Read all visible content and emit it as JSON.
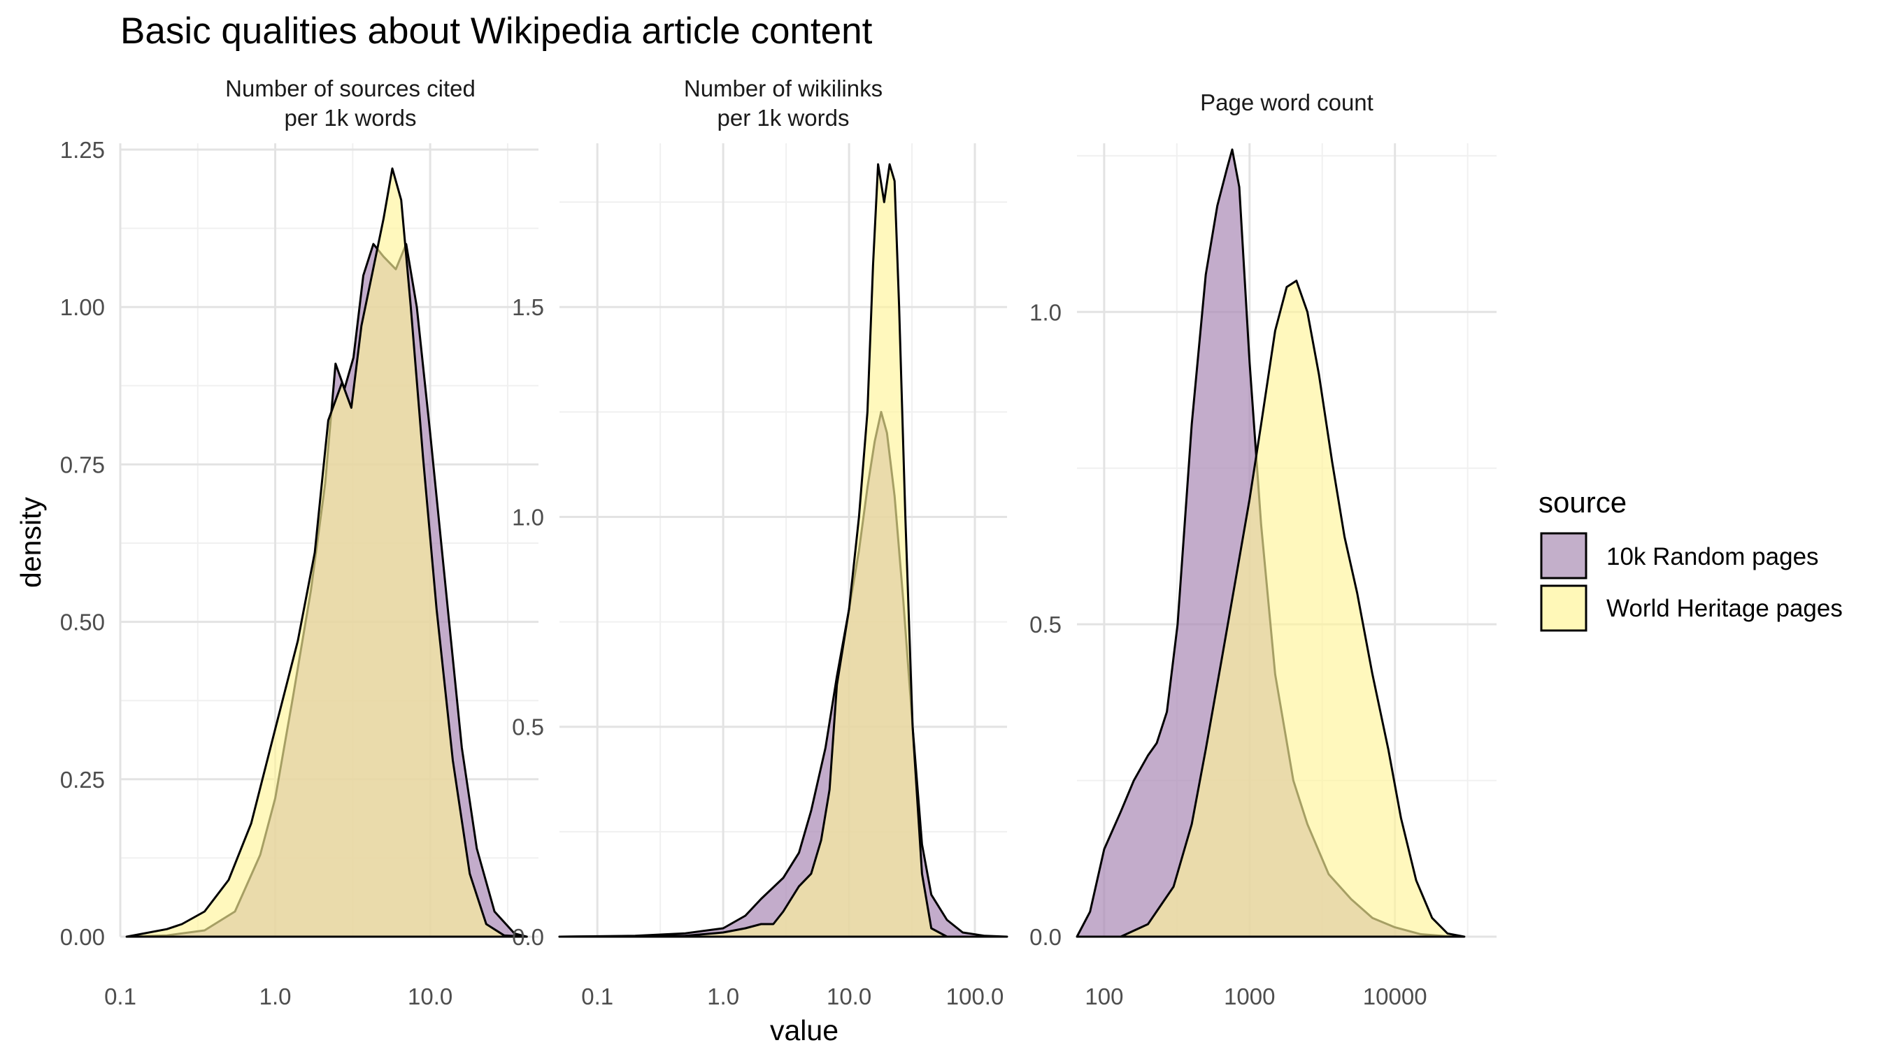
{
  "chart_data": {
    "type": "area",
    "title": "Basic qualities about Wikipedia article content",
    "xlabel": "value",
    "ylabel": "density",
    "xscale": "log10",
    "grid": true,
    "legend": {
      "title": "source",
      "position": "right",
      "entries": [
        {
          "label": "10k Random pages",
          "color": "#c3afca"
        },
        {
          "label": "World Heritage pages",
          "color": "#fff8b8"
        }
      ]
    },
    "colors": {
      "random": "#a989b5",
      "heritage": "#fff59a",
      "overlap": "#d9c6a0",
      "outline": "#000000"
    },
    "panels": [
      {
        "strip": [
          "Number of sources cited",
          "per 1k words"
        ],
        "xlim": [
          0.1,
          50
        ],
        "ylim": [
          0,
          1.26
        ],
        "xticks": [
          0.1,
          1.0,
          10.0
        ],
        "xtick_labels": [
          "0.1",
          "1.0",
          "10.0"
        ],
        "yticks": [
          0,
          0.25,
          0.5,
          0.75,
          1.0,
          1.25
        ],
        "ytick_labels": [
          "0.00",
          "0.25",
          "0.50",
          "0.75",
          "1.00",
          "1.25"
        ],
        "series": [
          {
            "name": "10k Random pages",
            "x": [
              0.11,
              0.2,
              0.35,
              0.55,
              0.8,
              1.0,
              1.3,
              1.7,
              2.1,
              2.45,
              2.8,
              3.2,
              3.7,
              4.3,
              5.0,
              6.0,
              7.0,
              8.2,
              10.0,
              13.0,
              16.0,
              20.0,
              26.0,
              35.0,
              42.0
            ],
            "y": [
              0.0,
              0.002,
              0.01,
              0.04,
              0.13,
              0.22,
              0.38,
              0.55,
              0.72,
              0.91,
              0.87,
              0.92,
              1.05,
              1.1,
              1.08,
              1.06,
              1.1,
              1.0,
              0.8,
              0.52,
              0.3,
              0.14,
              0.04,
              0.005,
              0.0
            ]
          },
          {
            "name": "World Heritage pages",
            "x": [
              0.11,
              0.2,
              0.25,
              0.35,
              0.5,
              0.7,
              1.0,
              1.4,
              1.8,
              2.2,
              2.7,
              3.1,
              3.6,
              4.2,
              5.0,
              5.7,
              6.5,
              7.5,
              9.0,
              11.0,
              14.0,
              18.0,
              23.0,
              30.0,
              42.0
            ],
            "y": [
              0.0,
              0.012,
              0.02,
              0.04,
              0.09,
              0.18,
              0.33,
              0.47,
              0.61,
              0.82,
              0.88,
              0.84,
              0.97,
              1.05,
              1.14,
              1.22,
              1.17,
              1.0,
              0.76,
              0.52,
              0.28,
              0.1,
              0.02,
              0.002,
              0.0
            ]
          }
        ]
      },
      {
        "strip": [
          "Number of wikilinks",
          "per 1k words"
        ],
        "xlim": [
          0.05,
          180
        ],
        "ylim": [
          0,
          1.89
        ],
        "xticks": [
          0.1,
          1.0,
          10.0,
          100.0
        ],
        "xtick_labels": [
          "0.1",
          "1.0",
          "10.0",
          "100.0"
        ],
        "yticks": [
          0,
          0.5,
          1.0,
          1.5
        ],
        "ytick_labels": [
          "0.0",
          "0.5",
          "1.0",
          "1.5"
        ],
        "series": [
          {
            "name": "10k Random pages",
            "x": [
              0.05,
              0.2,
              0.5,
              1.0,
              1.5,
              2.0,
              3.0,
              4.0,
              5.0,
              6.5,
              8.0,
              10.0,
              12.0,
              14.0,
              16.0,
              18.0,
              20.0,
              23.0,
              27.0,
              32.0,
              38.0,
              45.0,
              60.0,
              80.0,
              120.0,
              180.0
            ],
            "y": [
              0.0,
              0.002,
              0.008,
              0.02,
              0.05,
              0.09,
              0.14,
              0.2,
              0.3,
              0.45,
              0.62,
              0.78,
              0.92,
              1.07,
              1.18,
              1.25,
              1.2,
              1.05,
              0.8,
              0.5,
              0.22,
              0.1,
              0.04,
              0.01,
              0.002,
              0.0
            ]
          },
          {
            "name": "World Heritage pages",
            "x": [
              0.05,
              0.5,
              1.0,
              1.5,
              2.0,
              2.5,
              3.0,
              4.0,
              5.0,
              6.0,
              7.0,
              8.0,
              10.0,
              12.0,
              14.0,
              15.5,
              17.0,
              19.0,
              21.0,
              23.0,
              25.0,
              28.0,
              32.0,
              38.0,
              45.0,
              60.0
            ],
            "y": [
              0.0,
              0.002,
              0.01,
              0.02,
              0.03,
              0.03,
              0.06,
              0.12,
              0.15,
              0.23,
              0.35,
              0.6,
              0.78,
              1.0,
              1.25,
              1.6,
              1.84,
              1.75,
              1.84,
              1.8,
              1.5,
              1.0,
              0.5,
              0.15,
              0.02,
              0.0
            ]
          }
        ]
      },
      {
        "strip": [
          "Page word count"
        ],
        "xlim": [
          65,
          50000
        ],
        "ylim": [
          0,
          1.27
        ],
        "xticks": [
          100,
          1000,
          10000
        ],
        "xtick_labels": [
          "100",
          "1000",
          "10000"
        ],
        "yticks": [
          0,
          0.5,
          1.0
        ],
        "ytick_labels": [
          "0.0",
          "0.5",
          "1.0"
        ],
        "series": [
          {
            "name": "10k Random pages",
            "x": [
              65,
              80,
              100,
              130,
              160,
              200,
              230,
              270,
              320,
              400,
              500,
              600,
              700,
              760,
              850,
              1000,
              1200,
              1500,
              2000,
              2500,
              3500,
              5000,
              7000,
              10000,
              15000,
              25000
            ],
            "y": [
              0.0,
              0.04,
              0.14,
              0.2,
              0.25,
              0.29,
              0.31,
              0.36,
              0.5,
              0.82,
              1.06,
              1.17,
              1.23,
              1.26,
              1.2,
              0.92,
              0.66,
              0.42,
              0.25,
              0.18,
              0.1,
              0.06,
              0.03,
              0.015,
              0.004,
              0.0
            ]
          },
          {
            "name": "World Heritage pages",
            "x": [
              130,
              200,
              300,
              400,
              500,
              650,
              800,
              1000,
              1200,
              1500,
              1800,
              2100,
              2500,
              3000,
              3700,
              4500,
              5500,
              7000,
              9000,
              11000,
              14000,
              18000,
              23000,
              30000
            ],
            "y": [
              0.0,
              0.02,
              0.08,
              0.18,
              0.3,
              0.45,
              0.57,
              0.7,
              0.82,
              0.97,
              1.04,
              1.05,
              1.0,
              0.9,
              0.76,
              0.64,
              0.55,
              0.42,
              0.3,
              0.19,
              0.09,
              0.03,
              0.005,
              0.0
            ]
          }
        ]
      }
    ]
  }
}
